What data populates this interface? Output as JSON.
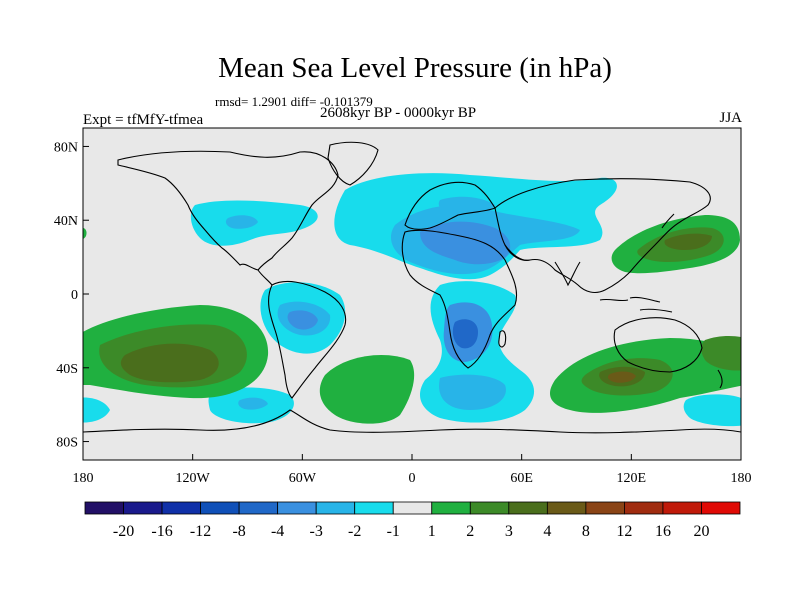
{
  "title": "Mean Sea Level Pressure (in hPa)",
  "stats_line": "rmsd= 1.2901 diff= -0.101379",
  "period": "2608kyr BP - 0000kyr BP",
  "experiment": "Expt = tfMfY-tfmea",
  "season": "JJA",
  "chart_data": {
    "type": "heatmap",
    "variable": "Mean Sea Level Pressure",
    "units": "hPa",
    "projection": "cylindrical equidistant",
    "xlim": [
      -180,
      180
    ],
    "ylim": [
      -90,
      90
    ],
    "x_ticks": [
      {
        "value": -180,
        "label": "180"
      },
      {
        "value": -120,
        "label": "120W"
      },
      {
        "value": -60,
        "label": "60W"
      },
      {
        "value": 0,
        "label": "0"
      },
      {
        "value": 60,
        "label": "60E"
      },
      {
        "value": 120,
        "label": "120E"
      },
      {
        "value": 180,
        "label": "180"
      }
    ],
    "y_ticks": [
      {
        "value": 80,
        "label": "80N"
      },
      {
        "value": 40,
        "label": "40N"
      },
      {
        "value": 0,
        "label": "0"
      },
      {
        "value": -40,
        "label": "40S"
      },
      {
        "value": -80,
        "label": "80S"
      }
    ],
    "colorbar": {
      "colors": [
        "#221066",
        "#1a1a8c",
        "#1030a8",
        "#1050b8",
        "#2068c8",
        "#3a90e0",
        "#28b4e8",
        "#18dcec",
        "#e8e8e8",
        "#20b040",
        "#3c8a28",
        "#4a6e1c",
        "#6a5a18",
        "#8a4416",
        "#a02c10",
        "#c01a0a",
        "#e00a05"
      ],
      "labels": [
        "-20",
        "-16",
        "-12",
        "-8",
        "-4",
        "-3",
        "-2",
        "-1",
        "1",
        "2",
        "3",
        "4",
        "8",
        "12",
        "16",
        "20"
      ]
    },
    "anomaly_regions": [
      {
        "name": "North Atlantic / Eurasia low",
        "lon": 10,
        "lat": 42,
        "value": -2
      },
      {
        "name": "Mediterranean / North Africa low",
        "lon": 25,
        "lat": 30,
        "value": -3
      },
      {
        "name": "Southern Africa low",
        "lon": 25,
        "lat": -18,
        "value": -4
      },
      {
        "name": "South Atlantic / Indian Ocean low",
        "lon": 30,
        "lat": -55,
        "value": -3
      },
      {
        "name": "Tropical South America low",
        "lon": -60,
        "lat": -10,
        "value": -3
      },
      {
        "name": "North America low",
        "lon": -100,
        "lat": 45,
        "value": -2
      },
      {
        "name": "Southeast Pacific low",
        "lon": -80,
        "lat": -65,
        "value": -3
      },
      {
        "name": "Northwest Pacific high",
        "lon": 145,
        "lat": 35,
        "value": 4
      },
      {
        "name": "South Pacific high",
        "lon": -130,
        "lat": -40,
        "value": 4
      },
      {
        "name": "South Indian Ocean high",
        "lon": 110,
        "lat": -50,
        "value": 4
      },
      {
        "name": "South Atlantic high",
        "lon": -30,
        "lat": -50,
        "value": 2
      }
    ]
  }
}
